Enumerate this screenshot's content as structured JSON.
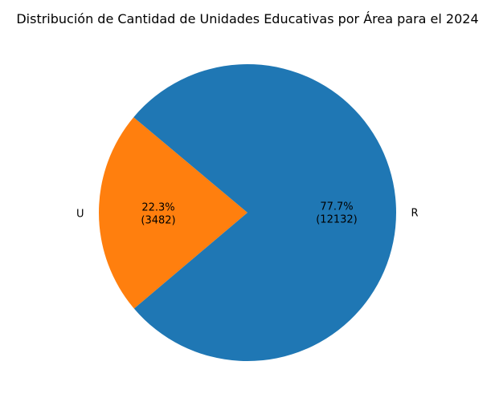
{
  "chart_data": {
    "type": "pie",
    "title": "Distribución de Cantidad de Unidades Educativas por Área para el 2024",
    "slices": [
      {
        "label": "U",
        "value": 3482,
        "percent": "22.3%",
        "count": "(3482)",
        "color": "#ff7f0e"
      },
      {
        "label": "R",
        "value": 12132,
        "percent": "77.7%",
        "count": "(12132)",
        "color": "#1f77b4"
      }
    ],
    "start_angle_deg": 140,
    "direction": "counterclockwise",
    "legend": "none"
  }
}
